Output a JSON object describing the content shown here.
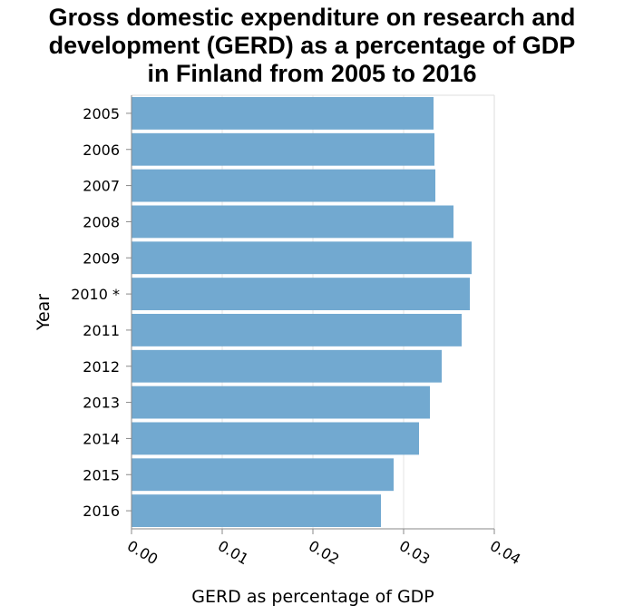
{
  "chart_data": {
    "type": "bar",
    "orientation": "horizontal",
    "title_lines": [
      "Gross domestic expenditure on research and",
      "development (GERD) as a percentage of GDP",
      "in Finland from 2005 to 2016"
    ],
    "xlabel": "GERD as percentage of GDP",
    "ylabel": "Year",
    "categories": [
      "2005",
      "2006",
      "2007",
      "2008",
      "2009",
      "2010 *",
      "2011",
      "2012",
      "2013",
      "2014",
      "2015",
      "2016"
    ],
    "values": [
      0.0333,
      0.0334,
      0.0335,
      0.0355,
      0.0375,
      0.0373,
      0.0364,
      0.0342,
      0.0329,
      0.0317,
      0.0289,
      0.0275
    ],
    "xlim": [
      0,
      0.04
    ],
    "xticks": [
      "0.00",
      "0.01",
      "0.02",
      "0.03",
      "0.04"
    ],
    "xtick_values": [
      0,
      0.01,
      0.02,
      0.03,
      0.04
    ],
    "grid": "vertical",
    "bar_color": "#72a9d0",
    "legend": "none"
  }
}
